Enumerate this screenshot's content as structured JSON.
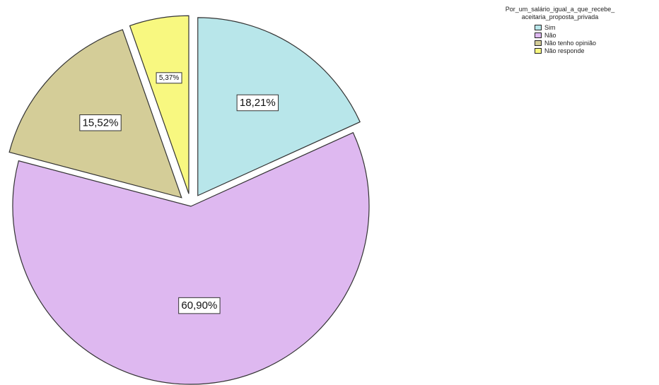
{
  "chart_data": {
    "type": "pie",
    "title": "",
    "legend_title_lines": [
      "Por_um_salário_igual_a_que_recebe_",
      "aceitaria_proposta_privada"
    ],
    "legend_position": "top-right",
    "slices": [
      {
        "label": "Sim",
        "value": 18.21,
        "value_label": "18,21%",
        "color": "#b8e6ea",
        "exploded": true
      },
      {
        "label": "Não",
        "value": 60.9,
        "value_label": "60,90%",
        "color": "#deb8f0",
        "exploded": false
      },
      {
        "label": "Não tenho opinião",
        "value": 15.52,
        "value_label": "15,52%",
        "color": "#d4cd98",
        "exploded": true
      },
      {
        "label": "Não responde",
        "value": 5.37,
        "value_label": "5,37%",
        "color": "#f8f880",
        "exploded": true
      }
    ]
  }
}
